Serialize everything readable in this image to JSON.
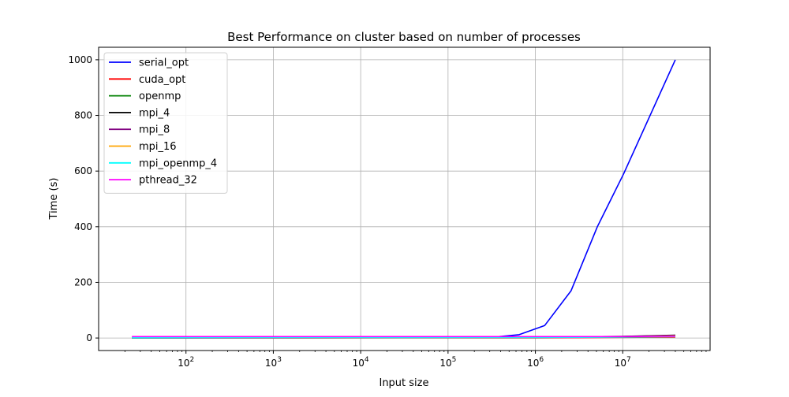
{
  "chart_data": {
    "type": "line",
    "title": "Best Performance on cluster based on number of processes",
    "xlabel": "Input size",
    "ylabel": "Time (s)",
    "xscale": "log",
    "xlim": [
      10,
      100000000
    ],
    "ylim": [
      -45,
      1045
    ],
    "grid": true,
    "legend_position": "top-left",
    "x_ticks": [
      {
        "value": 100,
        "base": "10",
        "exp": "2"
      },
      {
        "value": 1000,
        "base": "10",
        "exp": "3"
      },
      {
        "value": 10000,
        "base": "10",
        "exp": "4"
      },
      {
        "value": 100000,
        "base": "10",
        "exp": "5"
      },
      {
        "value": 1000000,
        "base": "10",
        "exp": "6"
      },
      {
        "value": 10000000,
        "base": "10",
        "exp": "7"
      }
    ],
    "y_ticks": [
      {
        "value": 0,
        "label": "0"
      },
      {
        "value": 200,
        "label": "200"
      },
      {
        "value": 400,
        "label": "400"
      },
      {
        "value": 600,
        "label": "600"
      },
      {
        "value": 800,
        "label": "800"
      },
      {
        "value": 1000,
        "label": "1000"
      }
    ],
    "series": [
      {
        "name": "serial_opt",
        "color": "#0000ff",
        "x": [
          24,
          300000,
          650000,
          1280000,
          2560000,
          5120000,
          10240000,
          40000000
        ],
        "y": [
          0,
          2,
          12,
          45,
          170,
          400,
          590,
          1000
        ]
      },
      {
        "name": "cuda_opt",
        "color": "#ff0000",
        "x": [
          24,
          1000000,
          40000000
        ],
        "y": [
          0,
          0.5,
          3
        ]
      },
      {
        "name": "openmp",
        "color": "#008000",
        "x": [
          24,
          1000000,
          10000000,
          40000000
        ],
        "y": [
          1,
          2,
          5,
          9
        ]
      },
      {
        "name": "mpi_4",
        "color": "#000000",
        "x": [
          24,
          1000000,
          10000000,
          40000000
        ],
        "y": [
          1,
          2,
          6,
          10
        ]
      },
      {
        "name": "mpi_8",
        "color": "#800080",
        "x": [
          24,
          1000000,
          10000000,
          40000000
        ],
        "y": [
          1,
          2,
          5,
          9
        ]
      },
      {
        "name": "mpi_16",
        "color": "#ffa500",
        "x": [
          24,
          1000000,
          10000000,
          40000000
        ],
        "y": [
          1,
          2,
          4,
          7
        ]
      },
      {
        "name": "mpi_openmp_4",
        "color": "#00ffff",
        "x": [
          24,
          1000000,
          10000000,
          40000000
        ],
        "y": [
          1,
          2,
          3,
          5
        ]
      },
      {
        "name": "pthread_32",
        "color": "#ff00ff",
        "x": [
          24,
          1000000,
          10000000,
          40000000
        ],
        "y": [
          5,
          5,
          5,
          6
        ]
      }
    ]
  }
}
